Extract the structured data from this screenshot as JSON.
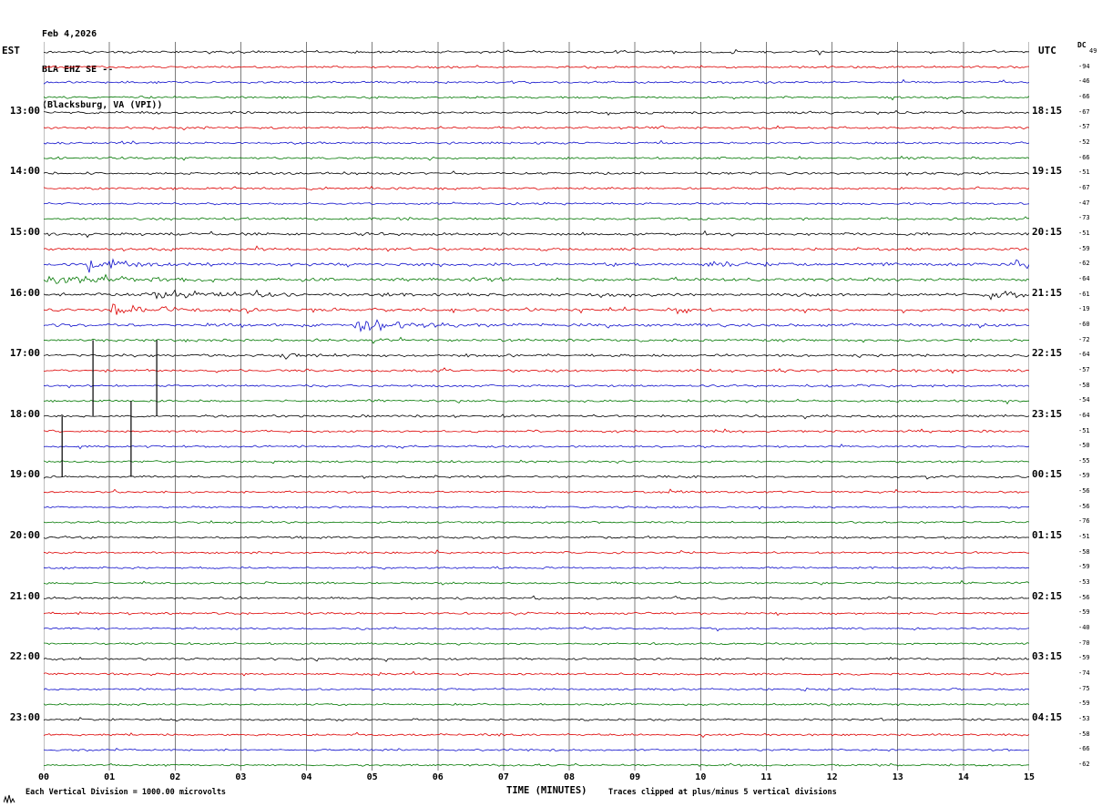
{
  "title": {
    "date": "Feb 4,2026",
    "station": "BLA EHZ SE --",
    "location": "(Blacksburg, VA (VPI))"
  },
  "axes": {
    "left_header": "EST",
    "right_header": "UTC",
    "dc_header": "DC",
    "x_label": "TIME (MINUTES)",
    "x_ticks": [
      "00",
      "01",
      "02",
      "03",
      "04",
      "05",
      "06",
      "07",
      "08",
      "09",
      "10",
      "11",
      "12",
      "13",
      "14",
      "15"
    ]
  },
  "footer": {
    "left": "Each Vertical Division = 1000.00 microvolts",
    "right": "Traces clipped at plus/minus 5 vertical divisions"
  },
  "colors": {
    "black": "#000000",
    "red": "#dd0000",
    "blue": "#1111cc",
    "green": "#007700",
    "grid": "#7d7d7d"
  },
  "chart_data": {
    "type": "line",
    "kind": "seismogram-helicorder",
    "station_line": "BLA EHZ SE -- (Blacksburg, VA (VPI))",
    "minutes_per_line": 15,
    "x_range_minutes": [
      0,
      15
    ],
    "color_cycle": [
      "black",
      "red",
      "blue",
      "green"
    ],
    "rows": [
      {
        "color": "black",
        "left": "",
        "right": "",
        "dc": "49",
        "noise": 1.5,
        "events": []
      },
      {
        "color": "red",
        "left": "",
        "right": "",
        "dc": "-94",
        "noise": 1.4,
        "events": []
      },
      {
        "color": "blue",
        "left": "",
        "right": "",
        "dc": "-46",
        "noise": 1.3,
        "events": []
      },
      {
        "color": "green",
        "left": "",
        "right": "",
        "dc": "-66",
        "noise": 1.3,
        "events": []
      },
      {
        "color": "black",
        "left": "13:00",
        "right": "18:15",
        "dc": "-67",
        "noise": 1.5,
        "events": []
      },
      {
        "color": "red",
        "left": "",
        "right": "",
        "dc": "-57",
        "noise": 1.4,
        "events": []
      },
      {
        "color": "blue",
        "left": "",
        "right": "",
        "dc": "-52",
        "noise": 1.3,
        "events": []
      },
      {
        "color": "green",
        "left": "",
        "right": "",
        "dc": "-66",
        "noise": 1.4,
        "events": []
      },
      {
        "color": "black",
        "left": "14:00",
        "right": "19:15",
        "dc": "-51",
        "noise": 1.5,
        "events": []
      },
      {
        "color": "red",
        "left": "",
        "right": "",
        "dc": "-67",
        "noise": 1.4,
        "events": []
      },
      {
        "color": "blue",
        "left": "",
        "right": "",
        "dc": "-47",
        "noise": 1.3,
        "events": []
      },
      {
        "color": "green",
        "left": "",
        "right": "",
        "dc": "-73",
        "noise": 1.5,
        "events": []
      },
      {
        "color": "black",
        "left": "15:00",
        "right": "20:15",
        "dc": "-51",
        "noise": 1.7,
        "events": []
      },
      {
        "color": "red",
        "left": "",
        "right": "",
        "dc": "-59",
        "noise": 1.7,
        "events": []
      },
      {
        "color": "blue",
        "left": "",
        "right": "",
        "dc": "-62",
        "noise": 1.8,
        "events": [
          {
            "t": 0.7,
            "dur": 0.35,
            "amp": 9
          },
          {
            "t": 10.2,
            "dur": 0.5,
            "amp": 2.5
          },
          {
            "t": 14.75,
            "dur": 0.5,
            "amp": 5
          }
        ]
      },
      {
        "color": "green",
        "left": "",
        "right": "",
        "dc": "-64",
        "noise": 1.9,
        "events": [
          {
            "t": 0.0,
            "dur": 0.8,
            "amp": 6
          },
          {
            "t": 6.65,
            "dur": 0.25,
            "amp": 3.5
          }
        ]
      },
      {
        "color": "black",
        "left": "16:00",
        "right": "21:15",
        "dc": "-61",
        "noise": 1.8,
        "events": [
          {
            "t": 1.7,
            "dur": 0.8,
            "amp": 5
          },
          {
            "t": 14.4,
            "dur": 0.5,
            "amp": 3.5
          }
        ]
      },
      {
        "color": "red",
        "left": "",
        "right": "",
        "dc": "-19",
        "noise": 1.8,
        "events": [
          {
            "t": 1.0,
            "dur": 0.45,
            "amp": 12
          },
          {
            "t": 3.9,
            "dur": 0.4,
            "amp": 3
          },
          {
            "t": 9.5,
            "dur": 0.5,
            "amp": 3.5
          }
        ]
      },
      {
        "color": "blue",
        "left": "",
        "right": "",
        "dc": "-60",
        "noise": 1.8,
        "events": [
          {
            "t": 2.55,
            "dur": 0.25,
            "amp": 2.5
          },
          {
            "t": 4.8,
            "dur": 0.7,
            "amp": 7
          }
        ]
      },
      {
        "color": "green",
        "left": "",
        "right": "",
        "dc": "-72",
        "noise": 1.7,
        "events": [
          {
            "t": 5.0,
            "dur": 0.2,
            "amp": 2
          }
        ]
      },
      {
        "color": "black",
        "left": "17:00",
        "right": "22:15",
        "dc": "-64",
        "noise": 1.7,
        "events": [
          {
            "t": 3.55,
            "dur": 0.4,
            "amp": 2.5
          }
        ]
      },
      {
        "color": "red",
        "left": "",
        "right": "",
        "dc": "-57",
        "noise": 1.6,
        "events": []
      },
      {
        "color": "blue",
        "left": "",
        "right": "",
        "dc": "-58",
        "noise": 1.4,
        "events": []
      },
      {
        "color": "green",
        "left": "",
        "right": "",
        "dc": "-54",
        "noise": 1.4,
        "events": [
          {
            "t": 4.85,
            "dur": 0.12,
            "amp": 5
          }
        ]
      },
      {
        "color": "black",
        "left": "18:00",
        "right": "23:15",
        "dc": "-64",
        "noise": 1.5,
        "events": []
      },
      {
        "color": "red",
        "left": "",
        "right": "",
        "dc": "-51",
        "noise": 1.5,
        "events": []
      },
      {
        "color": "blue",
        "left": "",
        "right": "",
        "dc": "-50",
        "noise": 1.3,
        "events": []
      },
      {
        "color": "green",
        "left": "",
        "right": "",
        "dc": "-55",
        "noise": 1.3,
        "events": []
      },
      {
        "color": "black",
        "left": "19:00",
        "right": "00:15",
        "dc": "-59",
        "noise": 1.4,
        "events": []
      },
      {
        "color": "red",
        "left": "",
        "right": "",
        "dc": "-56",
        "noise": 1.3,
        "events": []
      },
      {
        "color": "blue",
        "left": "",
        "right": "",
        "dc": "-56",
        "noise": 1.2,
        "events": []
      },
      {
        "color": "green",
        "left": "",
        "right": "",
        "dc": "-76",
        "noise": 1.2,
        "events": []
      },
      {
        "color": "black",
        "left": "20:00",
        "right": "01:15",
        "dc": "-51",
        "noise": 1.4,
        "events": []
      },
      {
        "color": "red",
        "left": "",
        "right": "",
        "dc": "-58",
        "noise": 1.3,
        "events": []
      },
      {
        "color": "blue",
        "left": "",
        "right": "",
        "dc": "-59",
        "noise": 1.2,
        "events": []
      },
      {
        "color": "green",
        "left": "",
        "right": "",
        "dc": "-53",
        "noise": 1.2,
        "events": []
      },
      {
        "color": "black",
        "left": "21:00",
        "right": "02:15",
        "dc": "-56",
        "noise": 1.4,
        "events": []
      },
      {
        "color": "red",
        "left": "",
        "right": "",
        "dc": "-59",
        "noise": 1.3,
        "events": []
      },
      {
        "color": "blue",
        "left": "",
        "right": "",
        "dc": "-40",
        "noise": 1.2,
        "events": []
      },
      {
        "color": "green",
        "left": "",
        "right": "",
        "dc": "-70",
        "noise": 1.2,
        "events": []
      },
      {
        "color": "black",
        "left": "22:00",
        "right": "03:15",
        "dc": "-59",
        "noise": 1.4,
        "events": []
      },
      {
        "color": "red",
        "left": "",
        "right": "",
        "dc": "-74",
        "noise": 1.3,
        "events": []
      },
      {
        "color": "blue",
        "left": "",
        "right": "",
        "dc": "-75",
        "noise": 1.3,
        "events": []
      },
      {
        "color": "green",
        "left": "",
        "right": "",
        "dc": "-59",
        "noise": 1.2,
        "events": []
      },
      {
        "color": "black",
        "left": "23:00",
        "right": "04:15",
        "dc": "-53",
        "noise": 1.3,
        "events": []
      },
      {
        "color": "red",
        "left": "",
        "right": "",
        "dc": "-58",
        "noise": 1.3,
        "events": []
      },
      {
        "color": "blue",
        "left": "",
        "right": "",
        "dc": "-66",
        "noise": 1.2,
        "events": []
      },
      {
        "color": "green",
        "left": "",
        "right": "",
        "dc": "-62",
        "noise": 1.2,
        "events": []
      }
    ],
    "pulses": [
      {
        "minute": 0.28,
        "from_row": 24,
        "to_row": 28
      },
      {
        "minute": 0.75,
        "from_row": 19,
        "to_row": 24
      },
      {
        "minute": 1.33,
        "from_row": 23,
        "to_row": 28
      },
      {
        "minute": 1.72,
        "from_row": 19,
        "to_row": 24
      }
    ]
  }
}
